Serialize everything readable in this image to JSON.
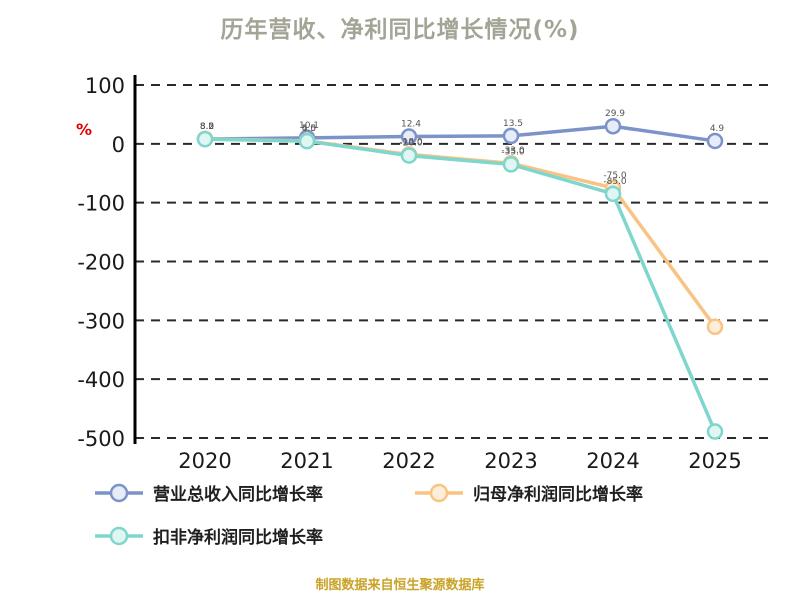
{
  "title": "历年营收、净利同比增长情况(%)",
  "ylabel": "%",
  "footer": "制图数据来自恒生聚源数据库",
  "colors": {
    "title": "#a3a396",
    "ylabel": "#e00000",
    "grid": "#2a2a2a",
    "axis": "#000000",
    "tick_text": "#1a1a1a",
    "footer": "#c9a227"
  },
  "chart_data": {
    "type": "line",
    "title": "历年营收、净利同比增长情况(%)",
    "xlabel": "",
    "ylabel": "%",
    "x": [
      "2020",
      "2021",
      "2022",
      "2023",
      "2024",
      "2025"
    ],
    "ylim": [
      -500,
      100
    ],
    "yticks": [
      100,
      0,
      -100,
      -200,
      -300,
      -400,
      -500
    ],
    "grid": "horizontal-dashed",
    "legend_position": "bottom-left",
    "series": [
      {
        "name": "营业总收入同比增长率",
        "color": "#7b93c9",
        "marker_fill": "#e6ecf8",
        "values": [
          8.2,
          10.1,
          12.4,
          13.5,
          29.9,
          4.9
        ]
      },
      {
        "name": "归母净利润同比增长率",
        "color": "#f9c483",
        "marker_fill": "#fdeeda",
        "values": [
          8.5,
          5.0,
          -18.0,
          -33.0,
          -75.0,
          -311.0
        ]
      },
      {
        "name": "扣非净利润同比增长率",
        "color": "#7fd6cd",
        "marker_fill": "#e0f6f3",
        "values": [
          8.0,
          4.5,
          -20.0,
          -35.0,
          -85.0,
          -489.0
        ]
      }
    ]
  }
}
